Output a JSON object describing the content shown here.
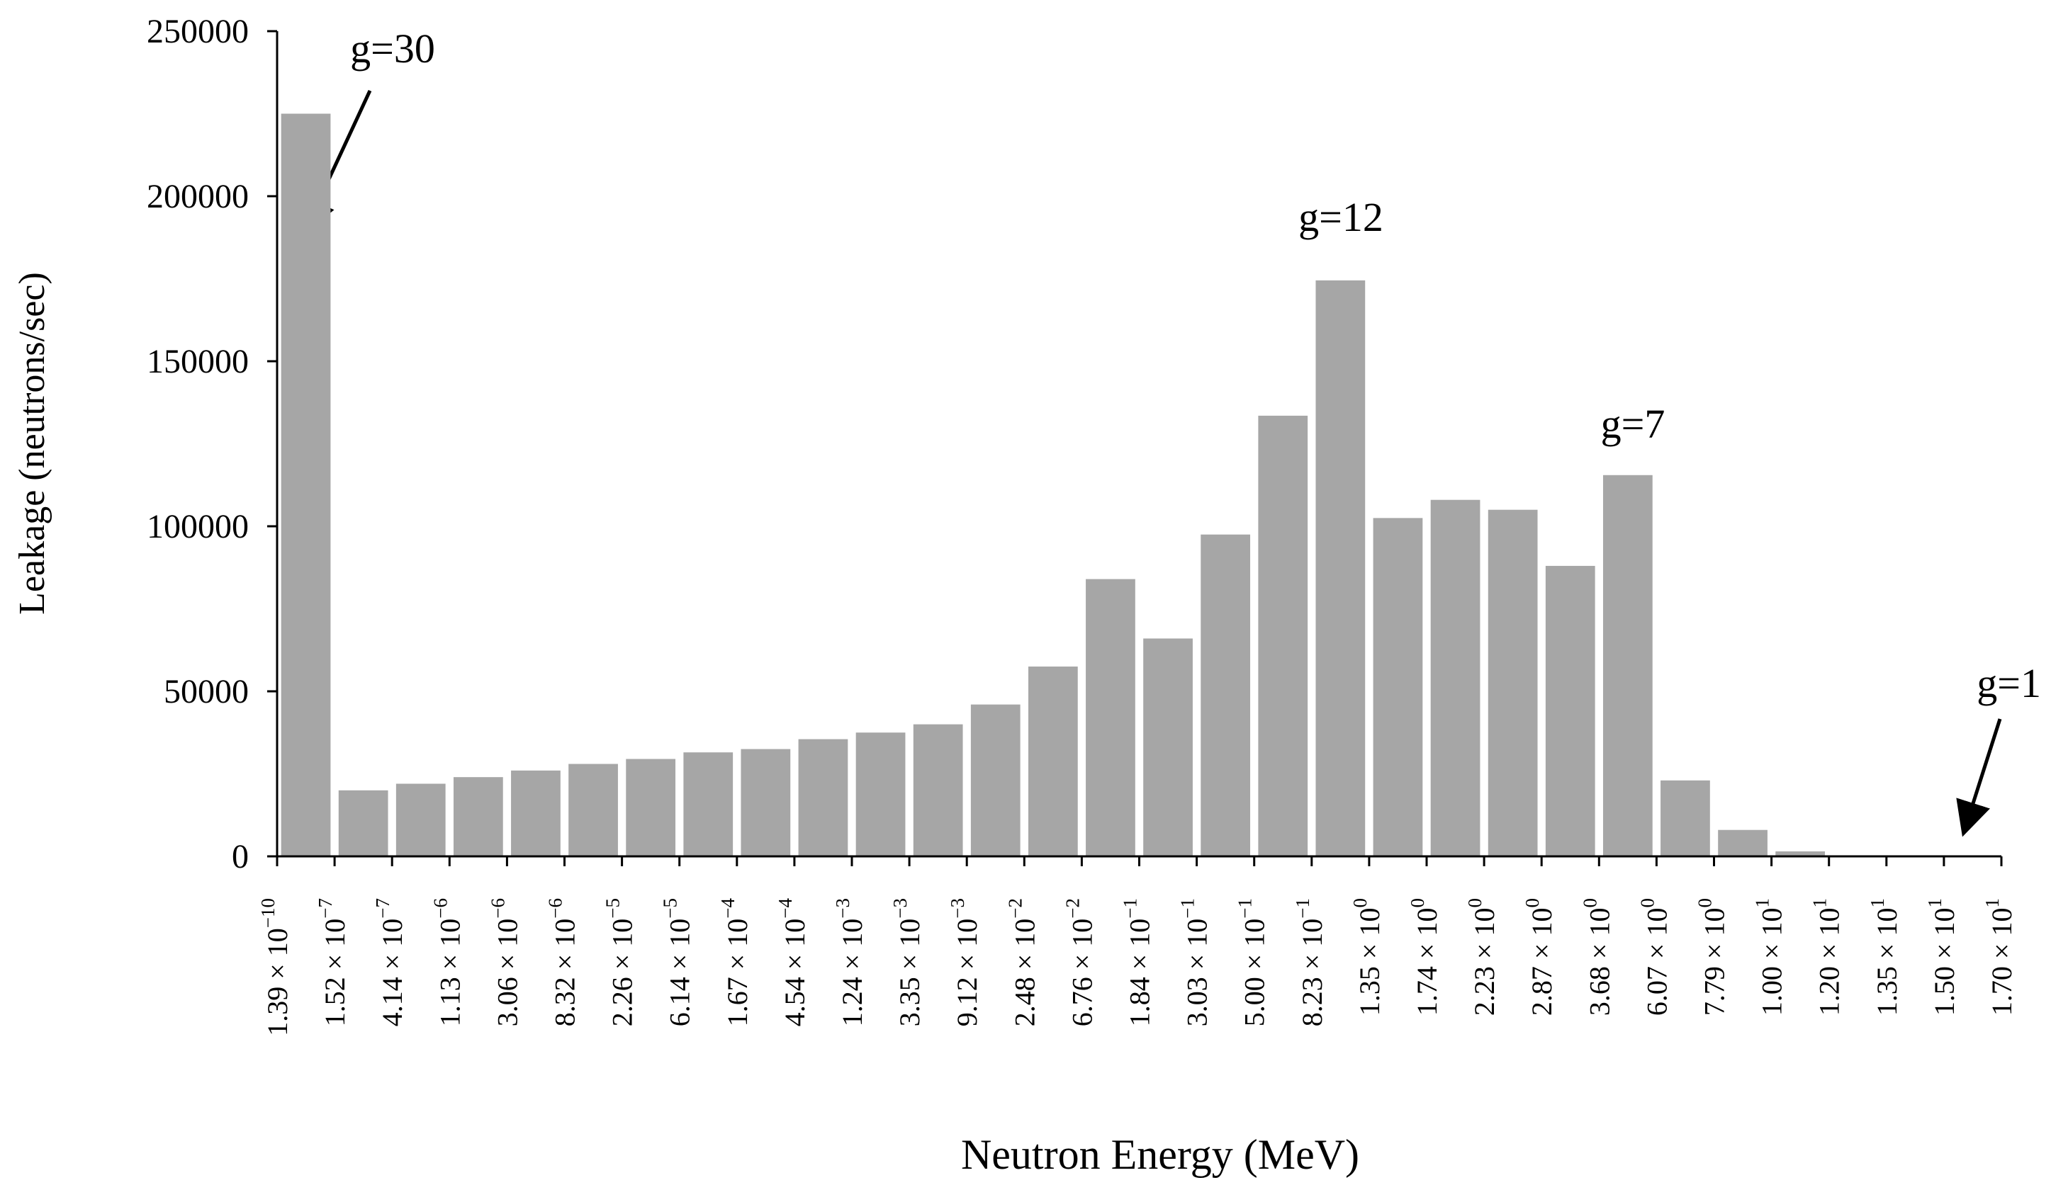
{
  "chart_data": {
    "type": "histogram",
    "x_label": "Neutron Energy (MeV)",
    "y_label": "Leakage (neutrons/sec)",
    "bins": [
      {
        "value": 1.39e-10,
        "label": "1.39 × 10",
        "exponent": "−10"
      },
      {
        "value": 1.52e-07,
        "label": "1.52 × 10",
        "exponent": "−7"
      },
      {
        "value": 4.14e-07,
        "label": "4.14 × 10",
        "exponent": "−7"
      },
      {
        "value": 1.13e-06,
        "label": "1.13 × 10",
        "exponent": "−6"
      },
      {
        "value": 3.06e-06,
        "label": "3.06 × 10",
        "exponent": "−6"
      },
      {
        "value": 8.32e-06,
        "label": "8.32 × 10",
        "exponent": "−6"
      },
      {
        "value": 2.26e-05,
        "label": "2.26 × 10",
        "exponent": "−5"
      },
      {
        "value": 6.14e-05,
        "label": "6.14 × 10",
        "exponent": "−5"
      },
      {
        "value": 0.000167,
        "label": "1.67 × 10",
        "exponent": "−4"
      },
      {
        "value": 0.000454,
        "label": "4.54 × 10",
        "exponent": "−4"
      },
      {
        "value": 0.00124,
        "label": "1.24 × 10",
        "exponent": "−3"
      },
      {
        "value": 0.00335,
        "label": "3.35 × 10",
        "exponent": "−3"
      },
      {
        "value": 0.00912,
        "label": "9.12 × 10",
        "exponent": "−3"
      },
      {
        "value": 0.0248,
        "label": "2.48 × 10",
        "exponent": "−2"
      },
      {
        "value": 0.0676,
        "label": "6.76 × 10",
        "exponent": "−2"
      },
      {
        "value": 0.184,
        "label": "1.84 × 10",
        "exponent": "−1"
      },
      {
        "value": 0.303,
        "label": "3.03 × 10",
        "exponent": "−1"
      },
      {
        "value": 0.5,
        "label": "5.00 × 10",
        "exponent": "−1"
      },
      {
        "value": 0.823,
        "label": "8.23 × 10",
        "exponent": "−1"
      },
      {
        "value": 1.35,
        "label": "1.35 × 10",
        "exponent": "0"
      },
      {
        "value": 1.74,
        "label": "1.74 × 10",
        "exponent": "0"
      },
      {
        "value": 2.23,
        "label": "2.23 × 10",
        "exponent": "0"
      },
      {
        "value": 2.87,
        "label": "2.87 × 10",
        "exponent": "0"
      },
      {
        "value": 3.68,
        "label": "3.68 × 10",
        "exponent": "0"
      },
      {
        "value": 6.07,
        "label": "6.07 × 10",
        "exponent": "0"
      },
      {
        "value": 7.79,
        "label": "7.79 × 10",
        "exponent": "0"
      },
      {
        "value": 10.0,
        "label": "1.00 × 10",
        "exponent": "1"
      },
      {
        "value": 12.0,
        "label": "1.20 × 10",
        "exponent": "1"
      },
      {
        "value": 13.5,
        "label": "1.35 × 10",
        "exponent": "1"
      },
      {
        "value": 15.0,
        "label": "1.50 × 10",
        "exponent": "1"
      },
      {
        "value": 17.0,
        "label": "1.70 × 10",
        "exponent": "1"
      }
    ],
    "values": [
      225000,
      20000,
      22000,
      24000,
      26000,
      28000,
      29500,
      31500,
      32500,
      35500,
      37500,
      40000,
      46000,
      57500,
      84000,
      66000,
      97500,
      133500,
      174500,
      102500,
      108000,
      105000,
      88000,
      115500,
      23000,
      8000,
      1500,
      300,
      100,
      50
    ],
    "color": "#a6a6a6",
    "ylim": [
      0,
      250000
    ],
    "yticks": [
      0,
      50000,
      100000,
      150000,
      200000,
      250000
    ],
    "annotations": [
      "g=30",
      "g=12",
      "g=7",
      "g=1"
    ]
  }
}
